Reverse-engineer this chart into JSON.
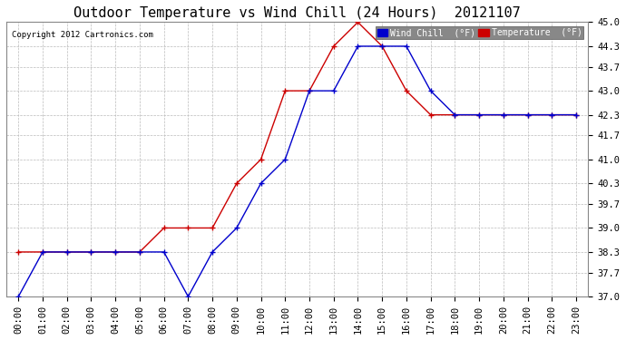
{
  "title": "Outdoor Temperature vs Wind Chill (24 Hours)  20121107",
  "copyright": "Copyright 2012 Cartronics.com",
  "hours": [
    "00:00",
    "01:00",
    "02:00",
    "03:00",
    "04:00",
    "05:00",
    "06:00",
    "07:00",
    "08:00",
    "09:00",
    "10:00",
    "11:00",
    "12:00",
    "13:00",
    "14:00",
    "15:00",
    "16:00",
    "17:00",
    "18:00",
    "19:00",
    "20:00",
    "21:00",
    "22:00",
    "23:00"
  ],
  "temperature": [
    38.3,
    38.3,
    38.3,
    38.3,
    38.3,
    38.3,
    39.0,
    39.0,
    39.0,
    40.3,
    41.0,
    43.0,
    43.0,
    44.3,
    45.0,
    44.3,
    43.0,
    42.3,
    42.3,
    42.3,
    42.3,
    42.3,
    42.3,
    42.3
  ],
  "wind_chill": [
    37.0,
    38.3,
    38.3,
    38.3,
    38.3,
    38.3,
    38.3,
    37.0,
    38.3,
    39.0,
    40.3,
    41.0,
    43.0,
    43.0,
    44.3,
    44.3,
    44.3,
    43.0,
    42.3,
    42.3,
    42.3,
    42.3,
    42.3,
    42.3
  ],
  "temp_color": "#cc0000",
  "wind_chill_color": "#0000cc",
  "ylim": [
    37.0,
    45.0
  ],
  "yticks": [
    37.0,
    37.7,
    38.3,
    39.0,
    39.7,
    40.3,
    41.0,
    41.7,
    42.3,
    43.0,
    43.7,
    44.3,
    45.0
  ],
  "background_color": "#ffffff",
  "plot_bg_color": "#ffffff",
  "grid_color": "#bbbbbb",
  "title_fontsize": 11,
  "tick_fontsize": 7.5,
  "legend_wind_chill_bg": "#0000cc",
  "legend_temp_bg": "#cc0000",
  "legend_text_color": "#ffffff"
}
